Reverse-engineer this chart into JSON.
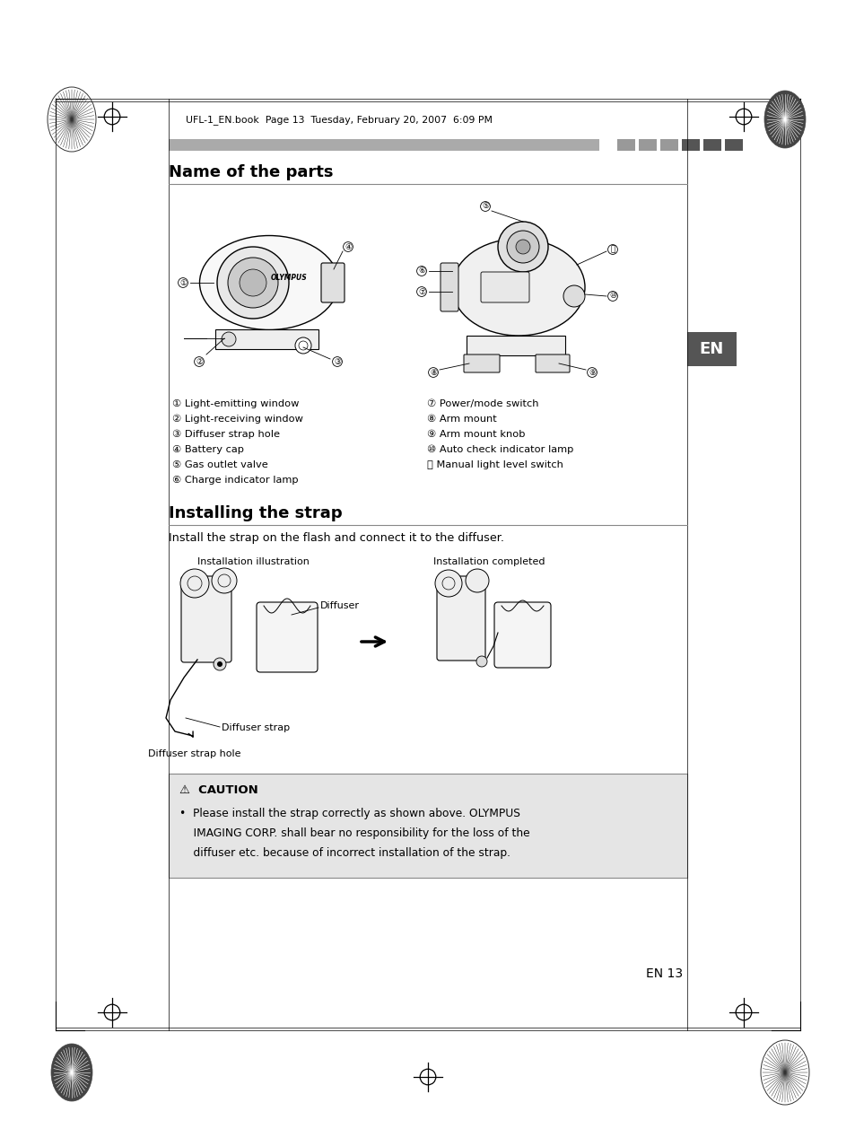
{
  "page_bg": "#ffffff",
  "header_text": "UFL-1_EN.book  Page 13  Tuesday, February 20, 2007  6:09 PM",
  "section1_title": "Name of the parts",
  "section2_title": "Installing the strap",
  "install_intro": "Install the strap on the flash and connect it to the diffuser.",
  "install_label1": "Installation illustration",
  "install_label2": "Installation completed",
  "install_sub1": "Diffuser",
  "install_sub2": "Diffuser strap",
  "install_sub3": "Diffuser strap hole",
  "parts_left": [
    "① Light-emitting window",
    "② Light-receiving window",
    "③ Diffuser strap hole",
    "④ Battery cap",
    "⑤ Gas outlet valve",
    "⑥ Charge indicator lamp"
  ],
  "parts_right": [
    "⑦ Power/mode switch",
    "⑧ Arm mount",
    "⑨ Arm mount knob",
    "⑩ Auto check indicator lamp",
    "⑪ Manual light level switch"
  ],
  "caution_title": "⚠  CAUTION",
  "en_label": "EN",
  "page_number": "EN 13",
  "caution_bg": "#e5e5e5",
  "bar_colors": [
    "#999999",
    "#999999",
    "#999999",
    "#555555",
    "#555555",
    "#555555"
  ],
  "reg_mark_color": "#000000",
  "header_line_color": "#888888",
  "section_line_color": "#888888"
}
